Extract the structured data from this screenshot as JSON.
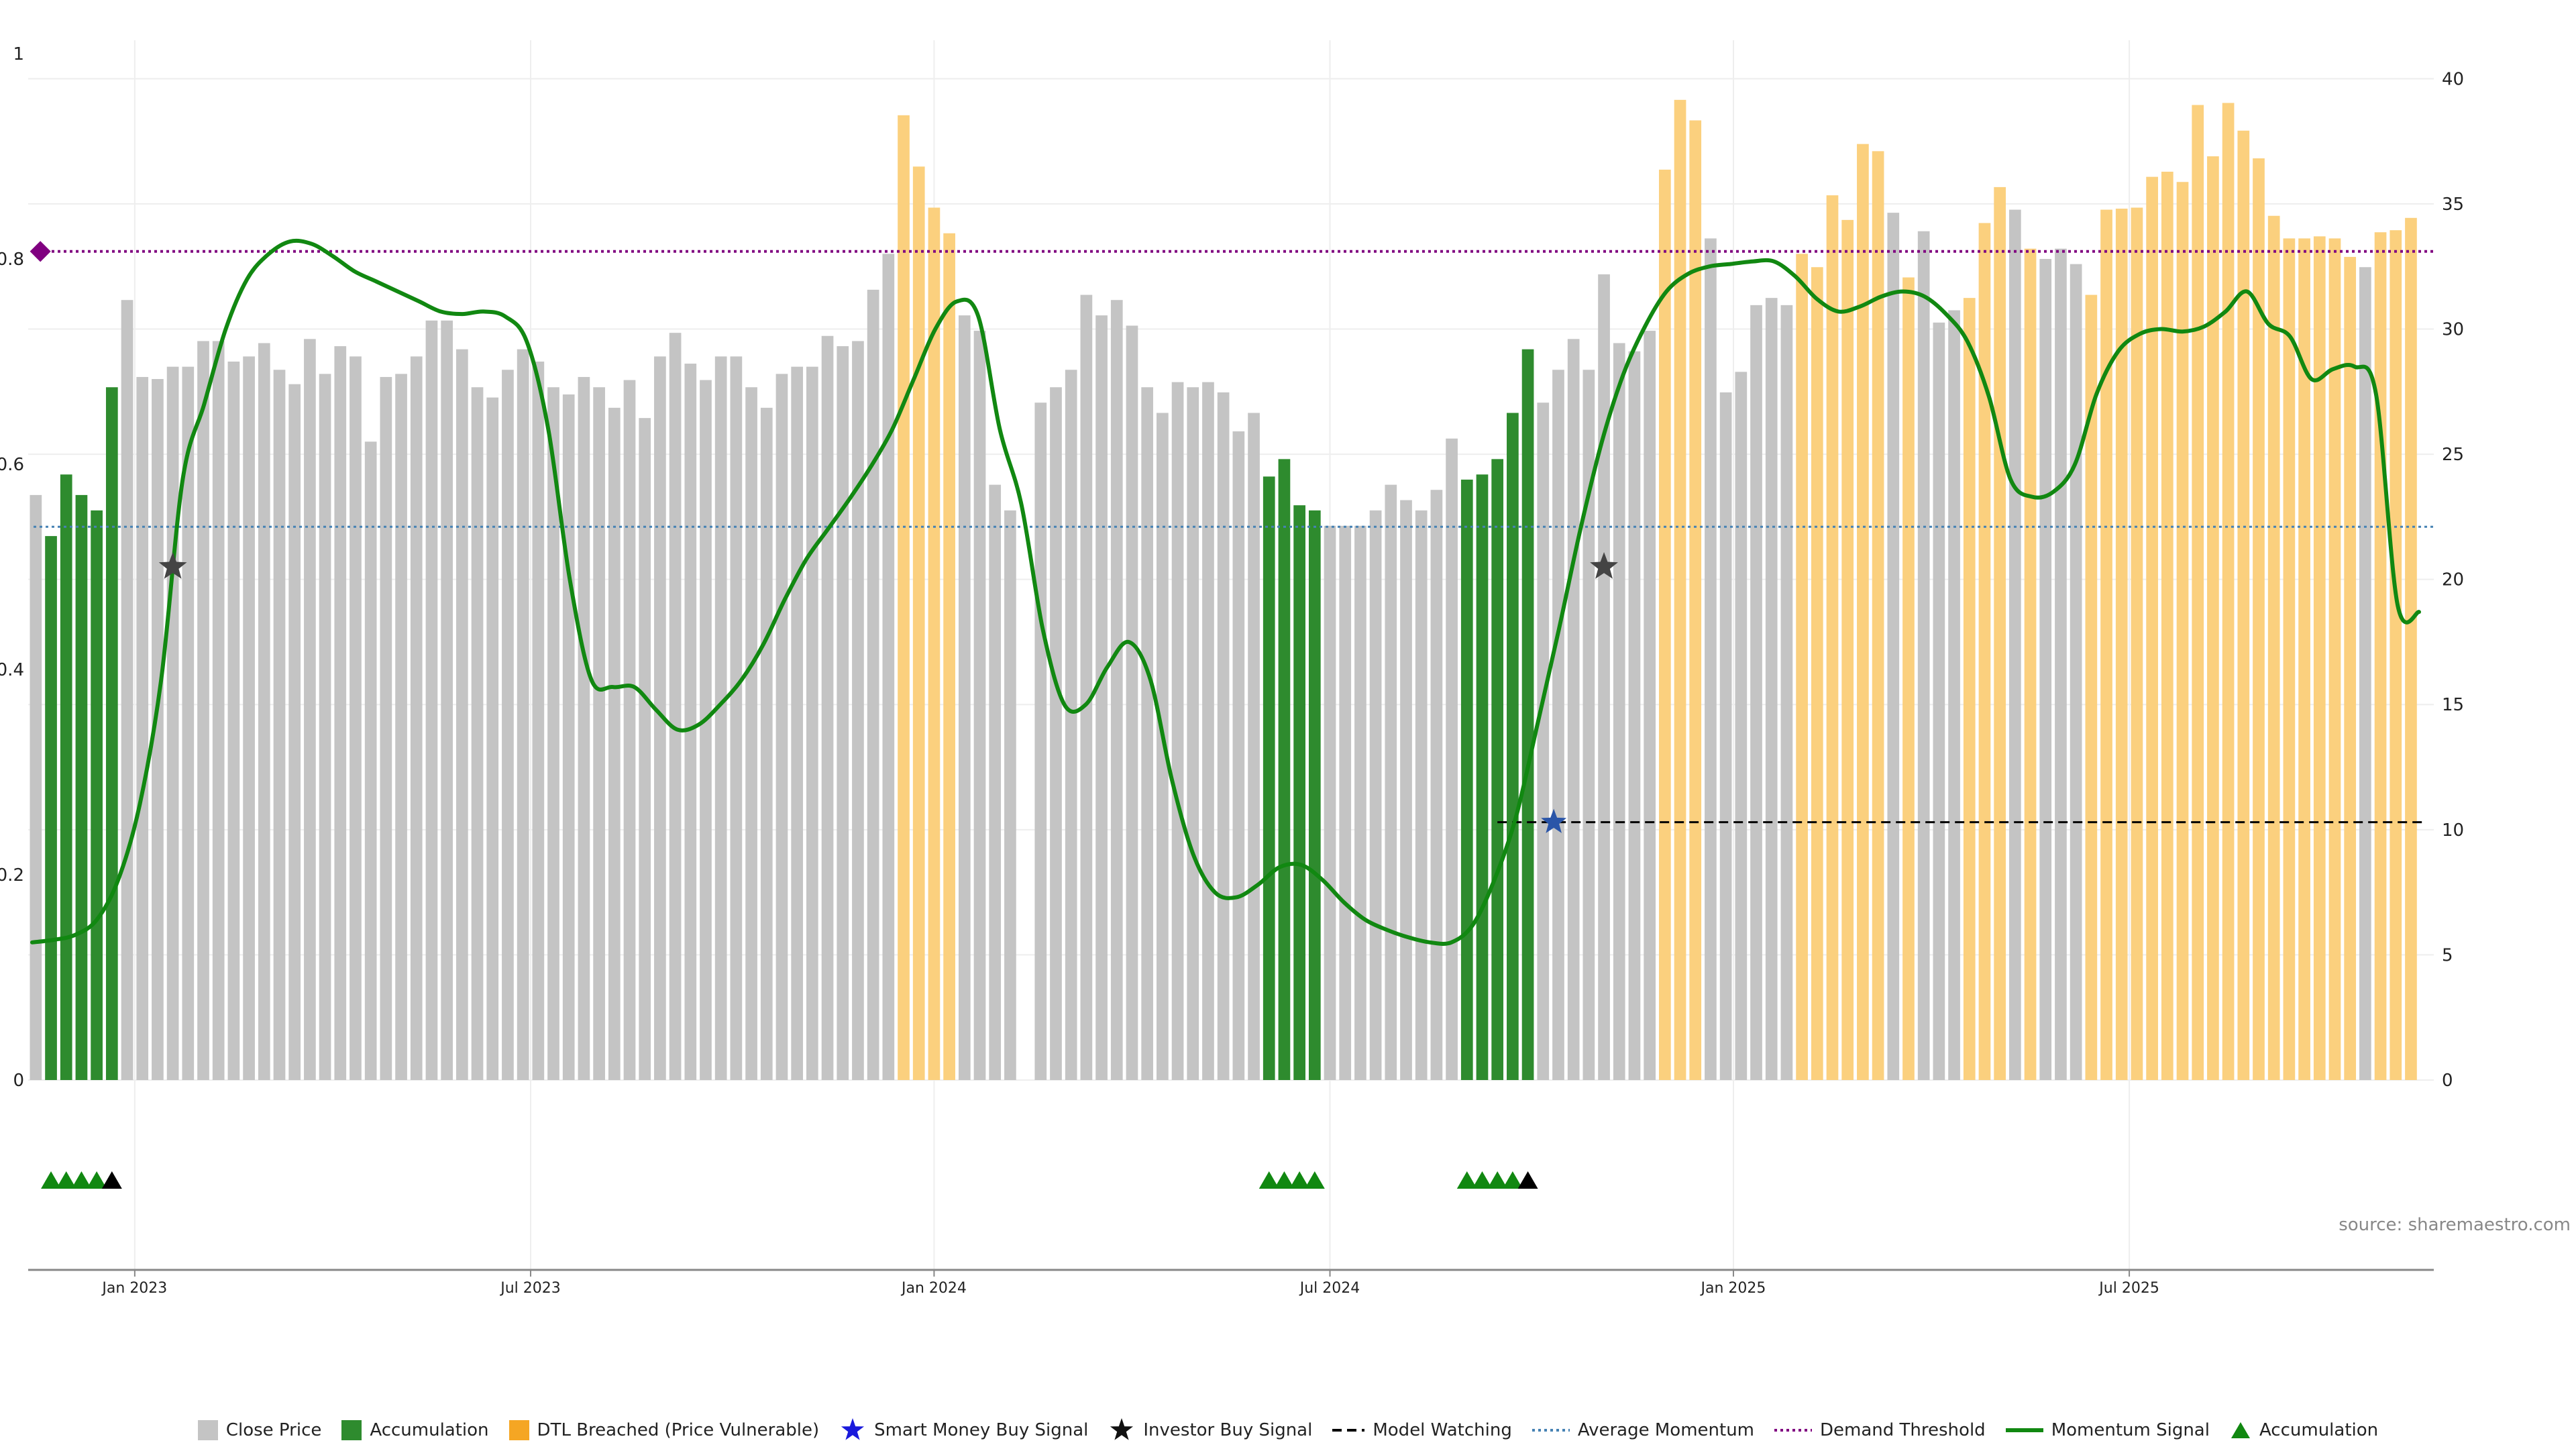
{
  "chart_data": {
    "type": "bar+line",
    "source_text": "source: sharemaestro.com",
    "left_axis": {
      "ylim": [
        0,
        1
      ],
      "ticks": [
        "0",
        "0.2",
        "0.4",
        "0.6",
        "0.8",
        "1"
      ]
    },
    "right_axis": {
      "ylim": [
        0,
        41
      ],
      "ticks": [
        "0",
        "5",
        "10",
        "15",
        "20",
        "25",
        "30",
        "35",
        "40"
      ]
    },
    "x_axis": {
      "ticks": [
        {
          "label": "Jan 2023",
          "index": 6.5
        },
        {
          "label": "Jul 2023",
          "index": 32.5
        },
        {
          "label": "Jan 2024",
          "index": 59
        },
        {
          "label": "Jul 2024",
          "index": 85
        },
        {
          "label": "Jan 2025",
          "index": 111.5
        },
        {
          "label": "Jul 2025",
          "index": 137.5
        }
      ]
    },
    "bars": {
      "count": 158,
      "values": [
        0.57,
        0.53,
        0.59,
        0.57,
        0.555,
        0.675,
        0.76,
        0.685,
        0.683,
        0.695,
        0.695,
        0.72,
        0.72,
        0.7,
        0.705,
        0.718,
        0.692,
        0.678,
        0.722,
        0.688,
        0.715,
        0.705,
        0.622,
        0.685,
        0.688,
        0.705,
        0.74,
        0.74,
        0.712,
        0.675,
        0.665,
        0.692,
        0.712,
        0.7,
        0.675,
        0.668,
        0.685,
        0.675,
        0.655,
        0.682,
        0.645,
        0.705,
        0.728,
        0.698,
        0.682,
        0.705,
        0.705,
        0.675,
        0.655,
        0.688,
        0.695,
        0.695,
        0.725,
        0.715,
        0.72,
        0.77,
        0.805,
        0.94,
        0.89,
        0.85,
        0.825,
        0.745,
        0.73,
        0.58,
        0.555,
        0,
        0.66,
        0.675,
        0.692,
        0.765,
        0.745,
        0.76,
        0.735,
        0.675,
        0.65,
        0.68,
        0.675,
        0.68,
        0.67,
        0.632,
        0.65,
        0.588,
        0.605,
        0.56,
        0.555,
        0.54,
        0.54,
        0.54,
        0.555,
        0.58,
        0.565,
        0.555,
        0.575,
        0.625,
        0.585,
        0.59,
        0.605,
        0.65,
        0.712,
        0.66,
        0.692,
        0.722,
        0.692,
        0.785,
        0.718,
        0.71,
        0.73,
        0.887,
        0.955,
        0.935,
        0.82,
        0.67,
        0.69,
        0.755,
        0.762,
        0.755,
        0.805,
        0.792,
        0.862,
        0.838,
        0.912,
        0.905,
        0.845,
        0.782,
        0.827,
        0.738,
        0.75,
        0.762,
        0.835,
        0.87,
        0.848,
        0.81,
        0.8,
        0.81,
        0.795,
        0.765,
        0.848,
        0.849,
        0.85,
        0.88,
        0.885,
        0.875,
        0.95,
        0.9,
        0.952,
        0.925,
        0.898,
        0.842,
        0.82,
        0.82,
        0.822,
        0.82,
        0.802,
        0.792,
        0.826,
        0.828,
        0.84
      ],
      "categories": [
        "Close Price",
        "Accumulation",
        "DTL Breached (Price Vulnerable)"
      ],
      "accumulation_indices": [
        1,
        2,
        3,
        4,
        5,
        81,
        82,
        83,
        84,
        94,
        95,
        96,
        97,
        98
      ],
      "dtl_indices": [
        57,
        58,
        59,
        60,
        107,
        108,
        109,
        116,
        117,
        118,
        119,
        120,
        121,
        123,
        127,
        128,
        129,
        131,
        135,
        136,
        137,
        138,
        139,
        140,
        141,
        142,
        143,
        144,
        145,
        146,
        147,
        148,
        149,
        150,
        151,
        152,
        154,
        155,
        156
      ]
    },
    "momentum_signal": {
      "name": "Momentum Signal",
      "axis": "right",
      "values": [
        5.5,
        5.6,
        5.8,
        6.4,
        8,
        11,
        16,
        24,
        27,
        30,
        32,
        33,
        33.5,
        33.4,
        32.9,
        32.3,
        31.9,
        31.5,
        31.1,
        30.7,
        30.6,
        30.7,
        30.5,
        29.5,
        26,
        20,
        16,
        15.7,
        15.7,
        14.8,
        14,
        14.2,
        15,
        16,
        17.4,
        19.2,
        20.8,
        22,
        23.2,
        24.5,
        26,
        28,
        30,
        31.1,
        30.5,
        26,
        23,
        18,
        15,
        15,
        16.5,
        17.5,
        16,
        12,
        9,
        7.5,
        7.3,
        7.8,
        8.5,
        8.6,
        8,
        7.1,
        6.4,
        6,
        5.7,
        5.5,
        5.5,
        6.2,
        8,
        10.5,
        14.2,
        18,
        22,
        25.5,
        28.2,
        30.1,
        31.5,
        32.2,
        32.5,
        32.6,
        32.7,
        32.7,
        32.1,
        31.2,
        30.7,
        30.9,
        31.3,
        31.5,
        31.3,
        30.6,
        29.5,
        27.3,
        24,
        23.3,
        23.5,
        24.6,
        27.4,
        29.1,
        29.8,
        30,
        29.9,
        30.1,
        30.7,
        31.5,
        30.2,
        29.7,
        28,
        28.4,
        28.5,
        27.4,
        19,
        18.7
      ]
    },
    "average_momentum": {
      "name": "Average Momentum",
      "value": 22.1
    },
    "demand_threshold": {
      "name": "Demand Threshold",
      "value": 33.1
    },
    "model_watching": {
      "name": "Model Watching",
      "value": 10.3,
      "from_index": 96,
      "to_index": 157
    },
    "investor_buy_signals": [
      {
        "index": 9,
        "value": 20.5
      },
      {
        "index": 103,
        "value": 20.5
      }
    ],
    "smart_money_buy_signals": [
      {
        "index": 99.7,
        "value": 10.3
      }
    ],
    "demand_marker": {
      "index": 0.3,
      "value": 33.1
    },
    "accumulation_triangles": {
      "green": [
        1,
        2,
        3,
        4,
        81,
        82,
        83,
        84,
        94,
        95,
        96,
        97
      ],
      "black": [
        5,
        98
      ]
    },
    "colors": {
      "close_price": "#c4c4c4",
      "accumulation": "#2e8b2e",
      "dtl": "#fbd07e",
      "momentum": "#118811",
      "average": "#4682b4",
      "demand": "#800080",
      "model": "#000000",
      "smart_money": "#1a1adc",
      "investor": "#111111"
    }
  },
  "legend": {
    "close_price": "Close Price",
    "accumulation": "Accumulation",
    "dtl": "DTL Breached (Price Vulnerable)",
    "smart_money": "Smart Money Buy Signal",
    "investor": "Investor Buy Signal",
    "model_watching": "Model Watching",
    "average_momentum": "Average Momentum",
    "demand_threshold": "Demand Threshold",
    "momentum_signal": "Momentum Signal",
    "accumulation_marker": "Accumulation"
  }
}
